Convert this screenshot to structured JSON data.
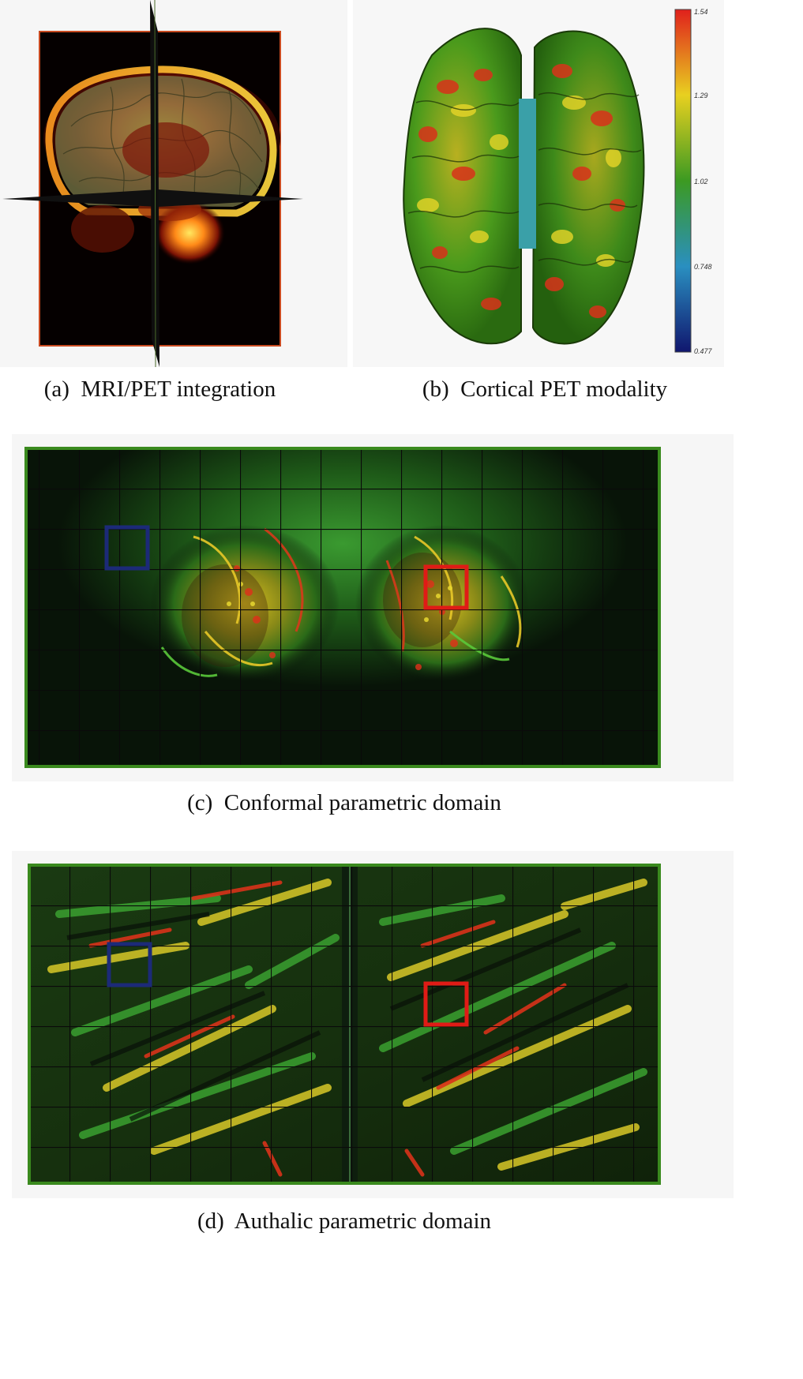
{
  "figure": {
    "panels": [
      {
        "id": "a",
        "caption": "(a)  MRI/PET integration",
        "kind": "mri-pet-volume"
      },
      {
        "id": "b",
        "caption": "(b)  Cortical PET modality",
        "kind": "cortical-surface"
      },
      {
        "id": "c",
        "caption": "(c)  Conformal parametric domain",
        "kind": "parametric-map",
        "highlight_boxes": [
          "blue",
          "red"
        ]
      },
      {
        "id": "d",
        "caption": "(d)  Authalic parametric domain",
        "kind": "parametric-map",
        "highlight_boxes": [
          "blue",
          "red"
        ]
      }
    ],
    "colorbar": {
      "ticks": [
        "1.54",
        "1.29",
        "1.02",
        "0.748",
        "0.477"
      ],
      "colors_top_to_bottom": [
        "#e0201c",
        "#e8d020",
        "#3c9a22",
        "#2a8fc0",
        "#10166e"
      ]
    },
    "box_colors": {
      "blue": "#1c2a78",
      "red": "#e01b16"
    },
    "grid_color": "#0a0a0a",
    "frame_color": "#3a8a1e"
  }
}
